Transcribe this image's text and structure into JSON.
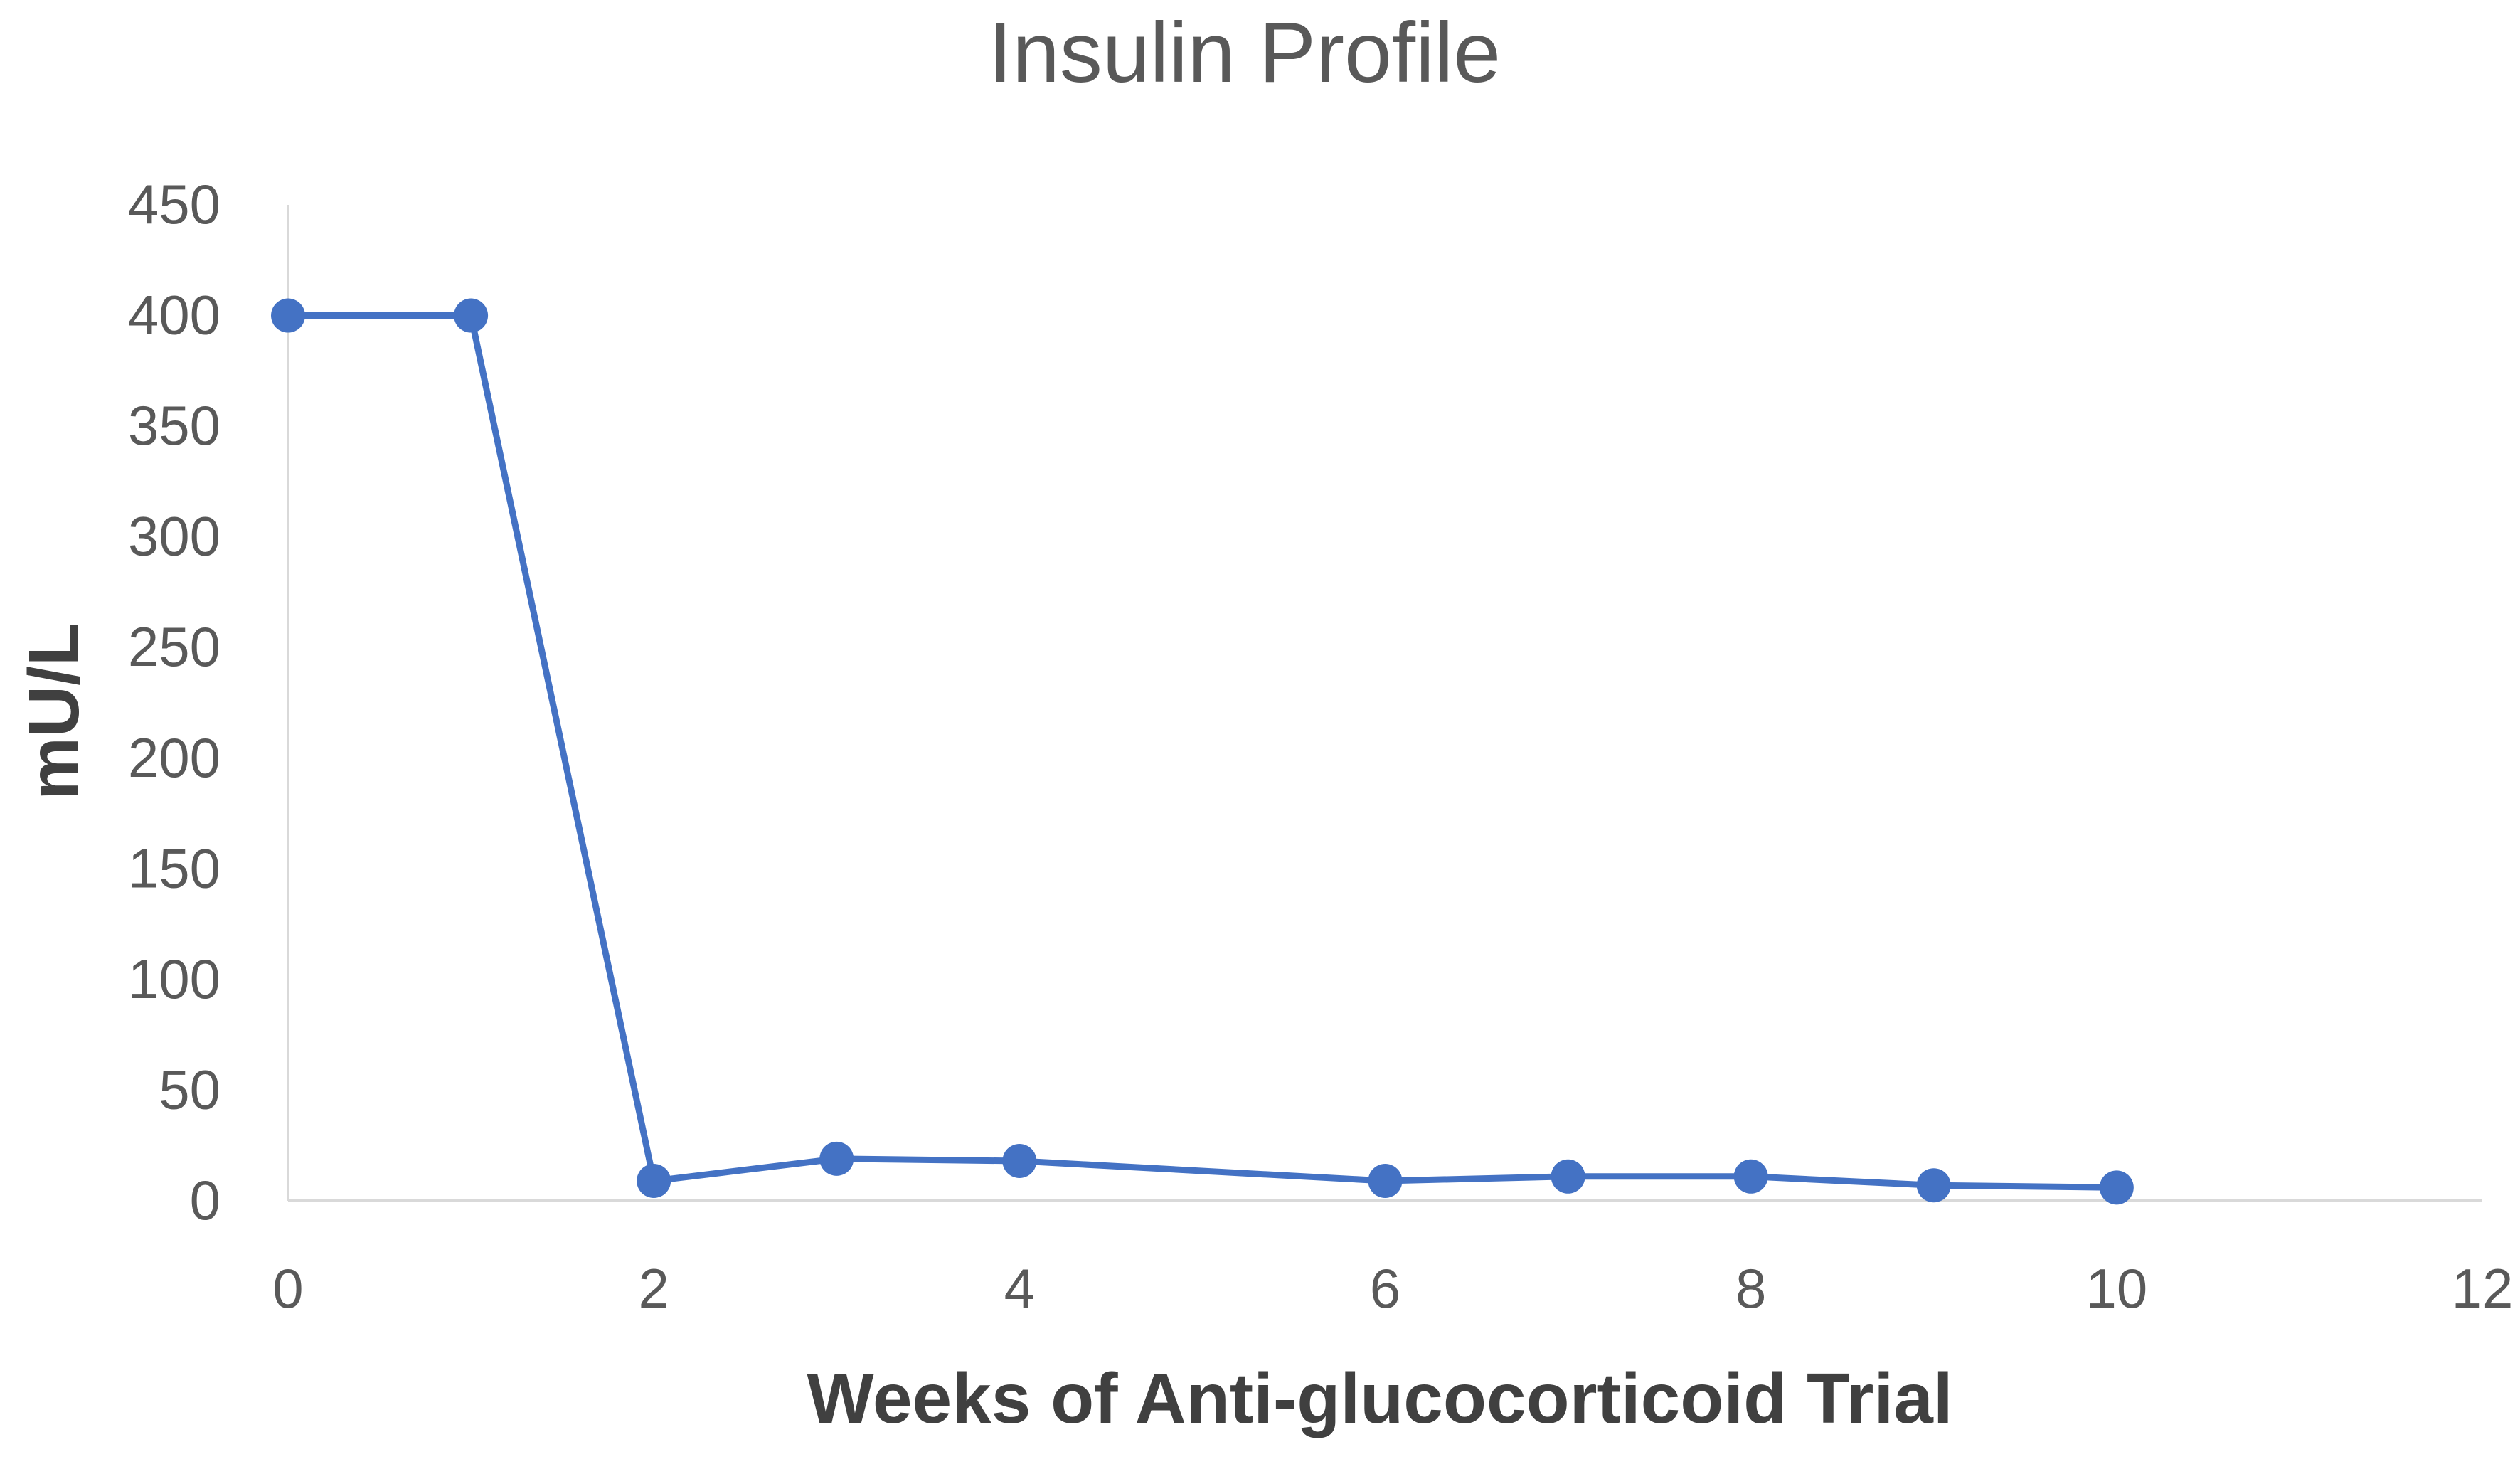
{
  "chart_data": {
    "type": "line",
    "title": "Insulin Profile",
    "xlabel": "Weeks of Anti-glucocorticoid Trial",
    "ylabel": "mU/L",
    "xlim": [
      0,
      12
    ],
    "ylim": [
      0,
      450
    ],
    "x_ticks": [
      "0",
      "2",
      "4",
      "6",
      "8",
      "10",
      "12"
    ],
    "y_ticks": [
      "0",
      "50",
      "100",
      "150",
      "200",
      "250",
      "300",
      "350",
      "400",
      "450"
    ],
    "grid": false,
    "legend": "none",
    "series": [
      {
        "color": "#4472c4",
        "points": [
          {
            "x": 0,
            "y": 400
          },
          {
            "x": 1,
            "y": 400
          },
          {
            "x": 2,
            "y": 9
          },
          {
            "x": 3,
            "y": 19
          },
          {
            "x": 4,
            "y": 18
          },
          {
            "x": 6,
            "y": 9
          },
          {
            "x": 7,
            "y": 11
          },
          {
            "x": 8,
            "y": 11
          },
          {
            "x": 9,
            "y": 7
          },
          {
            "x": 10,
            "y": 6
          }
        ]
      }
    ]
  }
}
